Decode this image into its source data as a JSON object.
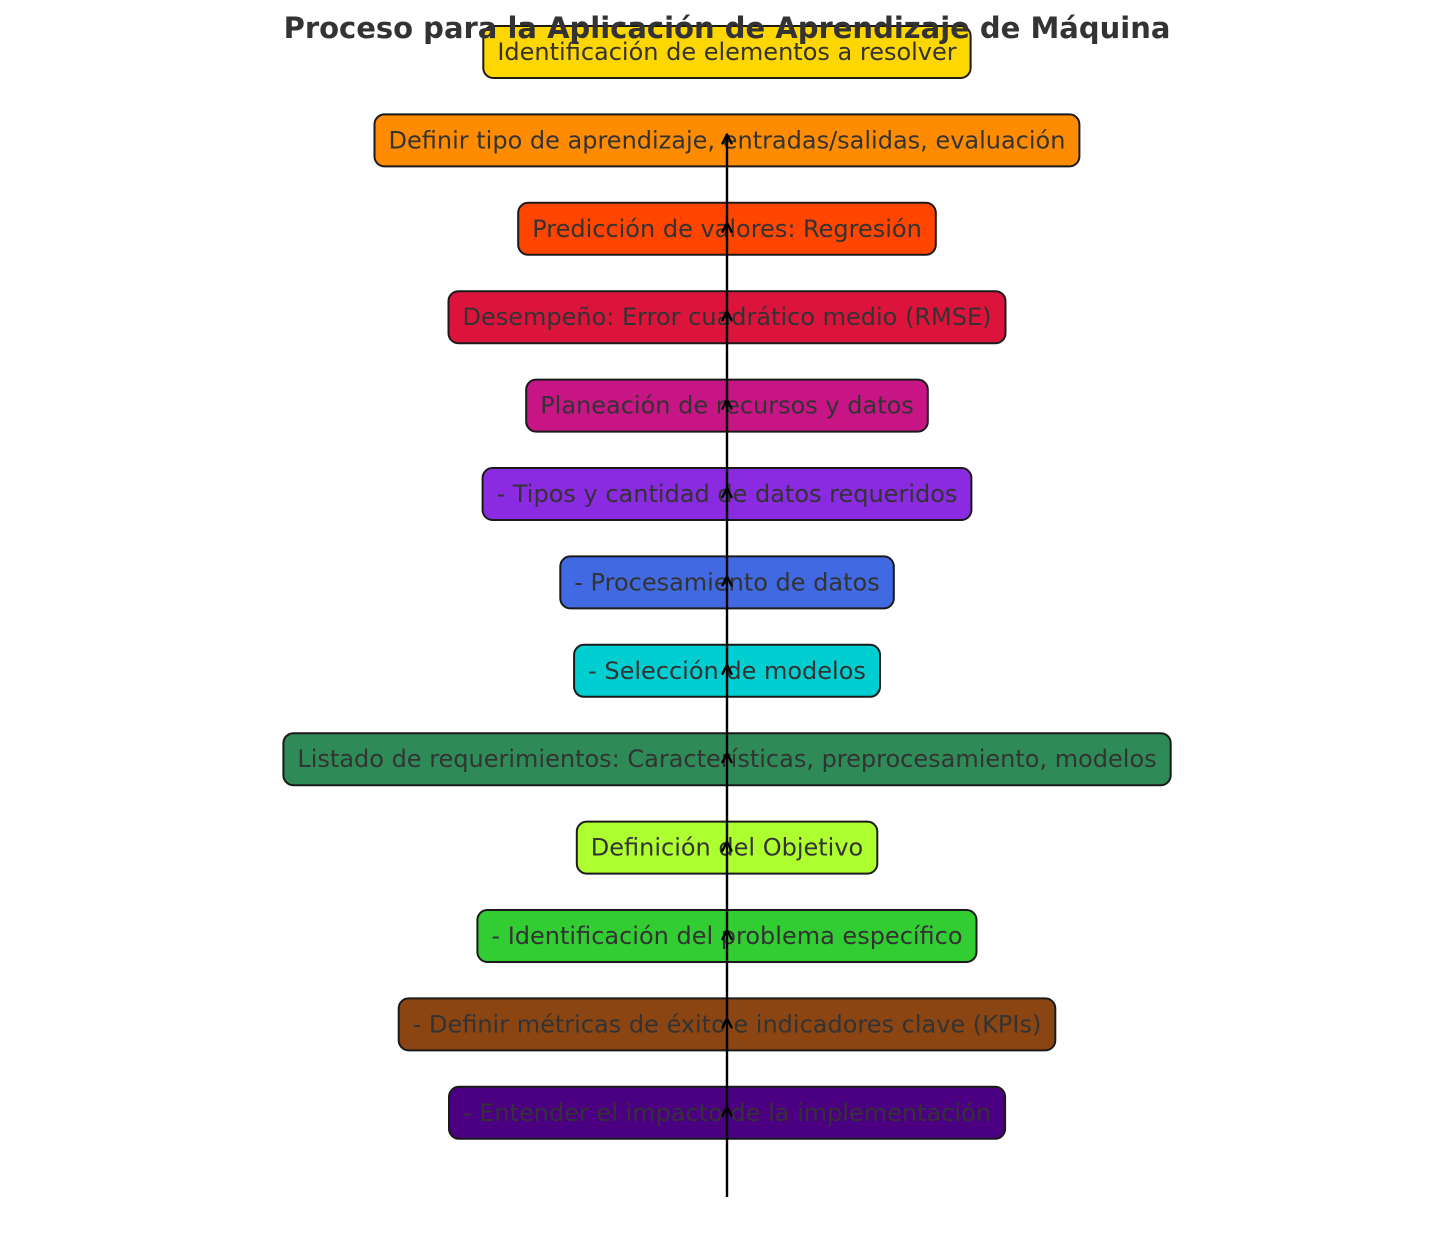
{
  "title": "Proceso para la Aplicación de Aprendizaje de Máquina",
  "steps": [
    {
      "label": "Identificación de elementos a resolver",
      "color": "#FFD700"
    },
    {
      "label": "Definir tipo de aprendizaje, entradas/salidas, evaluación",
      "color": "#FF8C00"
    },
    {
      "label": "Predicción de valores: Regresión",
      "color": "#FF4500"
    },
    {
      "label": "Desempeño: Error cuadrático medio (RMSE)",
      "color": "#DC143C"
    },
    {
      "label": "Planeación de recursos y datos",
      "color": "#C71585"
    },
    {
      "label": "- Tipos y cantidad de datos requeridos",
      "color": "#8A2BE2"
    },
    {
      "label": "- Procesamiento de datos",
      "color": "#4169E1"
    },
    {
      "label": "- Selección de modelos",
      "color": "#00CED1"
    },
    {
      "label": "Listado de requerimientos: Características, preprocesamiento, modelos",
      "color": "#2E8B57"
    },
    {
      "label": "Definición del Objetivo",
      "color": "#ADFF2F"
    },
    {
      "label": "- Identificación del problema específico",
      "color": "#32CD32"
    },
    {
      "label": "- Definir métricas de éxito e indicadores clave (KPIs)",
      "color": "#8B4513"
    },
    {
      "label": "- Entender el impacto de la implementación",
      "color": "#4B0082"
    }
  ]
}
